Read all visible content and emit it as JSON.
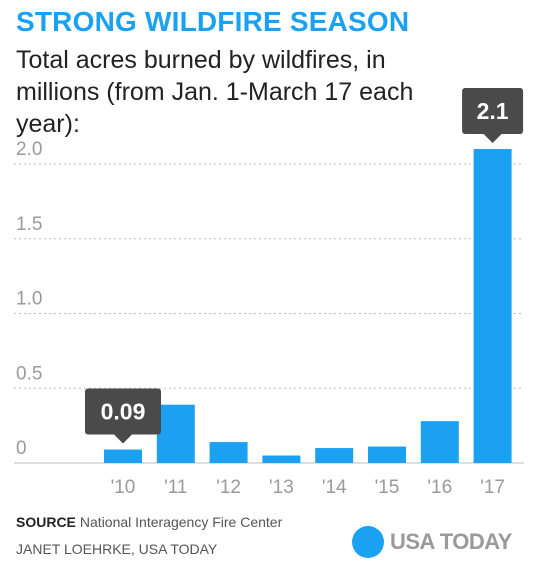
{
  "header": {
    "title": "STRONG WILDFIRE SEASON",
    "subtitle": "Total acres burned by wildfires, in millions (from Jan. 1-March 17 each year):"
  },
  "colors": {
    "title": "#1aa1f2",
    "bar": "#1ca0f2",
    "callout": "#4a4a4a",
    "grid": "#bdbdbd",
    "axis_text": "#9a9a9a",
    "logo_dot": "#1aa1f2"
  },
  "footer": {
    "source_label": "SOURCE",
    "source_text": "National Interagency Fire Center",
    "credit": "JANET LOEHRKE, USA TODAY",
    "logo_text": "USA TODAY",
    "logo_icon": "blue-circle-icon"
  },
  "chart_data": {
    "type": "bar",
    "title": "",
    "xlabel": "",
    "ylabel": "",
    "categories": [
      "'10",
      "'11",
      "'12",
      "'13",
      "'14",
      "'15",
      "'16",
      "'17"
    ],
    "values": [
      0.09,
      0.39,
      0.14,
      0.05,
      0.1,
      0.11,
      0.28,
      2.1
    ],
    "ylim": [
      0,
      2.1
    ],
    "y_ticks": [
      0,
      0.5,
      1.0,
      1.5,
      2.0
    ],
    "y_tick_labels": [
      "0",
      "0.5",
      "1.0",
      "1.5",
      "2.0"
    ],
    "grid": true,
    "annotations": [
      {
        "category": "'10",
        "label": "0.09"
      },
      {
        "category": "'17",
        "label": "2.1"
      }
    ]
  }
}
